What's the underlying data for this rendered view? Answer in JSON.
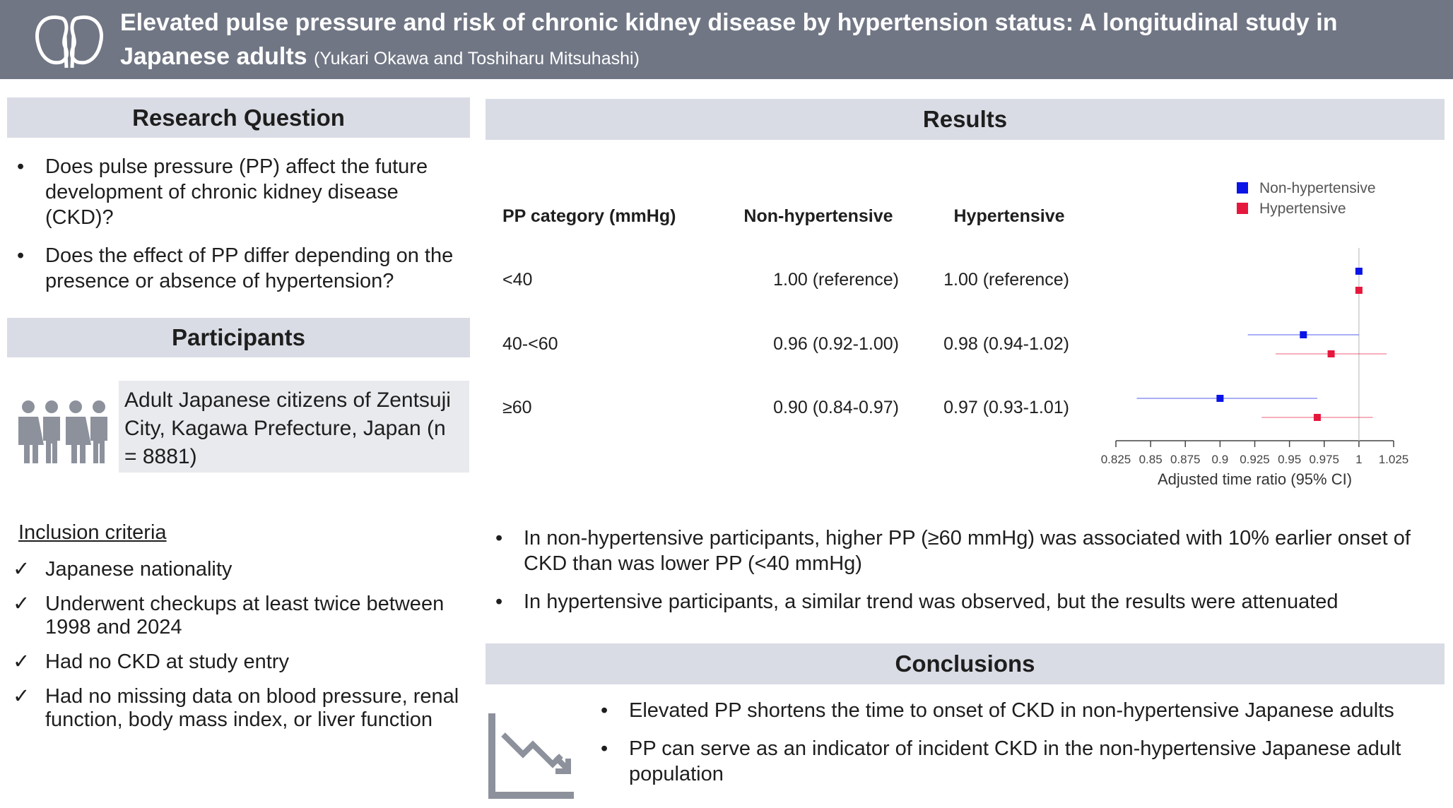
{
  "header": {
    "title": "Elevated pulse pressure and risk of chronic kidney disease by hypertension status: A longitudinal study in Japanese adults",
    "authors": "(Yukari Okawa and Toshiharu Mitsuhashi)"
  },
  "research_question": {
    "heading": "Research Question",
    "items": [
      "Does pulse pressure (PP) affect the future development of chronic kidney disease (CKD)?",
      "Does the effect of PP differ depending on the presence or absence of hypertension?"
    ]
  },
  "participants": {
    "heading": "Participants",
    "description": "Adult Japanese citizens of Zentsuji City, Kagawa Prefecture, Japan (n = 8881)",
    "inclusion_heading": "Inclusion criteria",
    "criteria": [
      "Japanese nationality",
      "Underwent checkups at least twice between 1998 and 2024",
      "Had no CKD at study entry",
      "Had no missing data on blood pressure, renal function, body mass index, or liver function"
    ]
  },
  "results": {
    "heading": "Results",
    "table": {
      "columns": [
        "PP category (mmHg)",
        "Non-hypertensive",
        "Hypertensive"
      ],
      "rows": [
        [
          "<40",
          "1.00 (reference)",
          "1.00 (reference)"
        ],
        [
          "40-<60",
          "0.96 (0.92-1.00)",
          "0.98 (0.94-1.02)"
        ],
        [
          "≥60",
          "0.90 (0.84-0.97)",
          "0.97 (0.93-1.01)"
        ]
      ]
    },
    "chart_data": {
      "type": "forest",
      "x_label": "Adjusted time ratio (95% CI)",
      "series": [
        {
          "name": "Non-hypertensive",
          "color": "#0a14e6",
          "values": [
            1,
            0.96,
            0.9
          ],
          "lower": [
            null,
            0.92,
            0.84
          ],
          "upper": [
            null,
            1.0,
            0.97
          ]
        },
        {
          "name": "Hypertensive",
          "color": "#e6173d",
          "values": [
            1,
            0.98,
            0.97
          ],
          "lower": [
            null,
            0.94,
            0.93
          ],
          "upper": [
            null,
            1.02,
            1.01
          ]
        }
      ],
      "xlim": [
        0.825,
        1.025
      ],
      "xticks": [
        0.825,
        0.85,
        0.875,
        0.9,
        0.925,
        0.95,
        0.975,
        1,
        1.025
      ],
      "reference_line": 1,
      "legend": "top-right"
    },
    "findings": [
      "In non-hypertensive participants, higher PP (≥60 mmHg) was associated with 10% earlier onset of CKD than was lower PP (<40 mmHg)",
      "In hypertensive participants, a similar trend was observed, but the results were attenuated"
    ]
  },
  "conclusions": {
    "heading": "Conclusions",
    "items": [
      "Elevated PP shortens the time to onset of CKD in non-hypertensive Japanese adults",
      "PP can serve as an indicator of incident CKD in the non-hypertensive Japanese adult population"
    ]
  }
}
